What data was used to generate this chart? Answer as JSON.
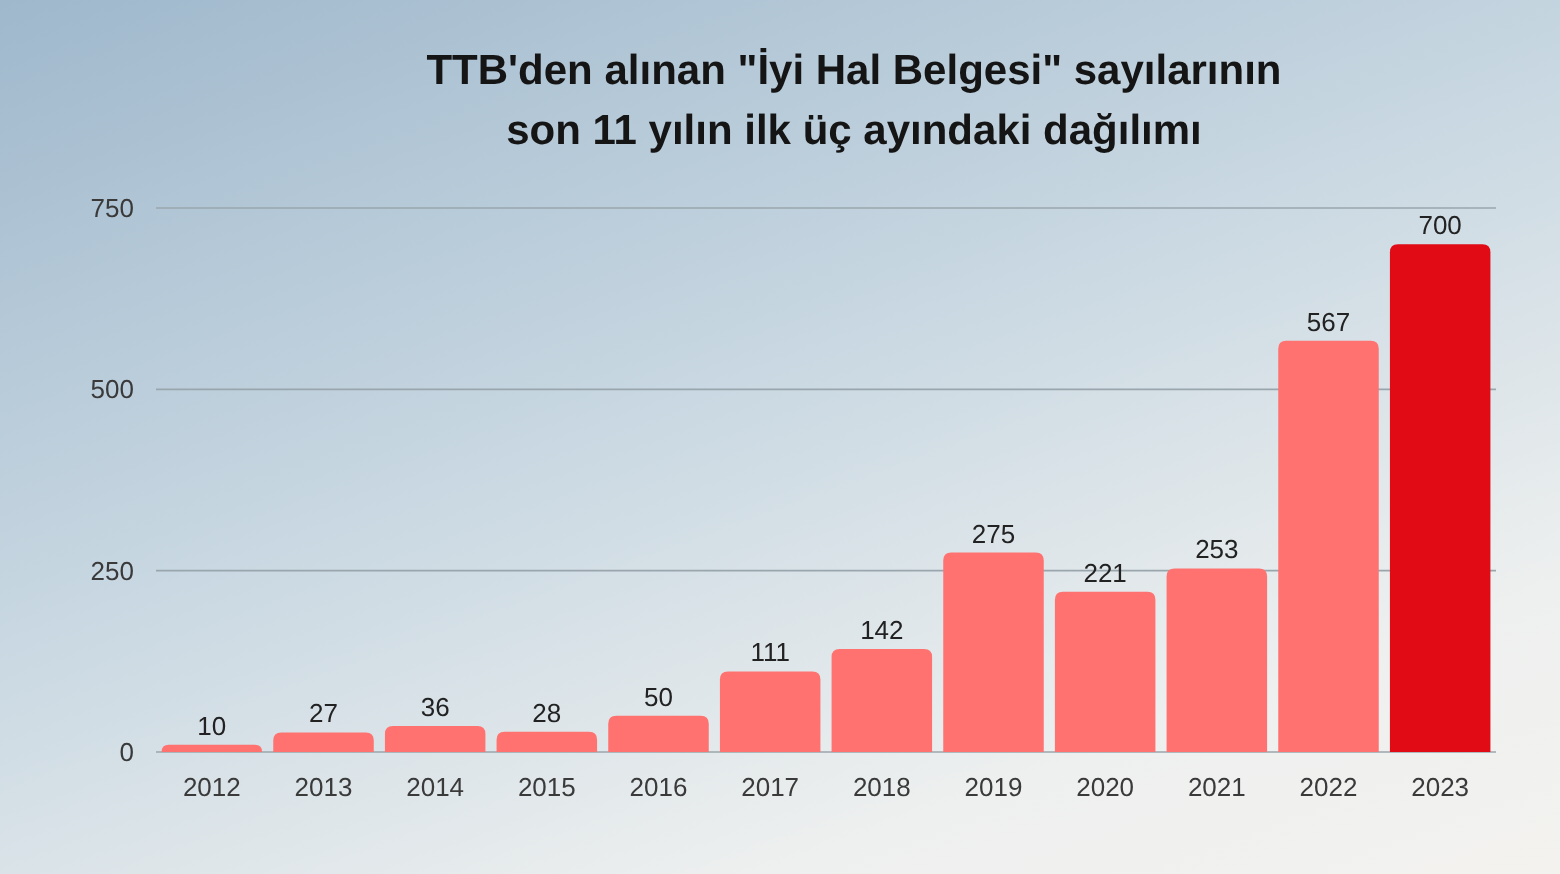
{
  "chart_data": {
    "type": "bar",
    "title": "TTB'den alınan \"İyi Hal Belgesi\" sayılarının\nson 11 yılın ilk üç ayındaki dağılımı",
    "categories": [
      "2012",
      "2013",
      "2014",
      "2015",
      "2016",
      "2017",
      "2018",
      "2019",
      "2020",
      "2021",
      "2022",
      "2023"
    ],
    "values": [
      10,
      27,
      36,
      28,
      50,
      111,
      142,
      275,
      221,
      253,
      567,
      700
    ],
    "colors": [
      "#ff7270",
      "#ff7270",
      "#ff7270",
      "#ff7270",
      "#ff7270",
      "#ff7270",
      "#ff7270",
      "#ff7270",
      "#ff7270",
      "#ff7270",
      "#ff7270",
      "#e10b16"
    ],
    "ylim": [
      0,
      750
    ],
    "yticks": [
      0,
      250,
      500,
      750
    ],
    "grid": "y",
    "data_labels": true
  }
}
